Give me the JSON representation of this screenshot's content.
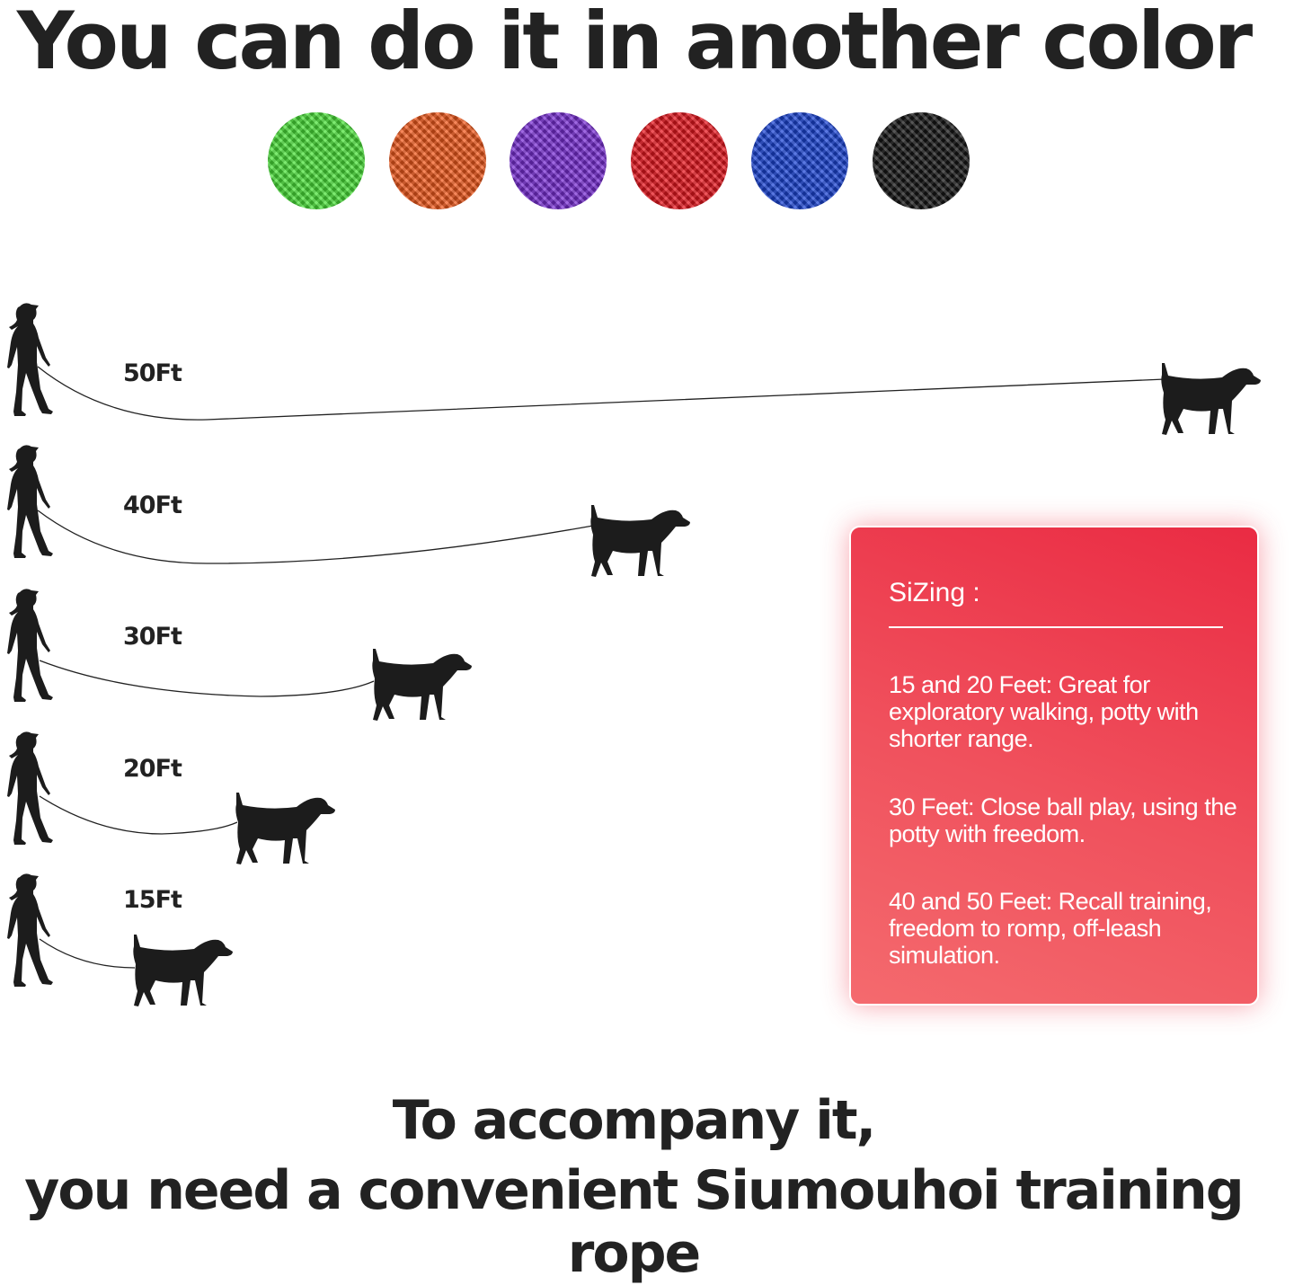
{
  "title": "You can do it in another color",
  "colors": [
    {
      "name": "green",
      "hex": "#4be33a"
    },
    {
      "name": "orange",
      "hex": "#f25a1c"
    },
    {
      "name": "purple",
      "hex": "#7a2fd6"
    },
    {
      "name": "red",
      "hex": "#e8161e"
    },
    {
      "name": "blue",
      "hex": "#1b44d6"
    },
    {
      "name": "black",
      "hex": "#151515"
    }
  ],
  "lengths": [
    "50Ft",
    "40Ft",
    "30Ft",
    "20Ft",
    "15Ft"
  ],
  "sizing": {
    "heading": "SiZing :",
    "items": [
      "15 and 20 Feet: Great for exploratory walking, potty with shorter range.",
      "30 Feet: Close ball play, using the potty with freedom.",
      "40 and 50 Feet: Recall training, freedom to romp, off-leash simulation."
    ],
    "accent": "#ee3b4e"
  },
  "footer": {
    "line1": "To accompany it,",
    "line2": "you need a convenient Siumouhoi training rope"
  }
}
